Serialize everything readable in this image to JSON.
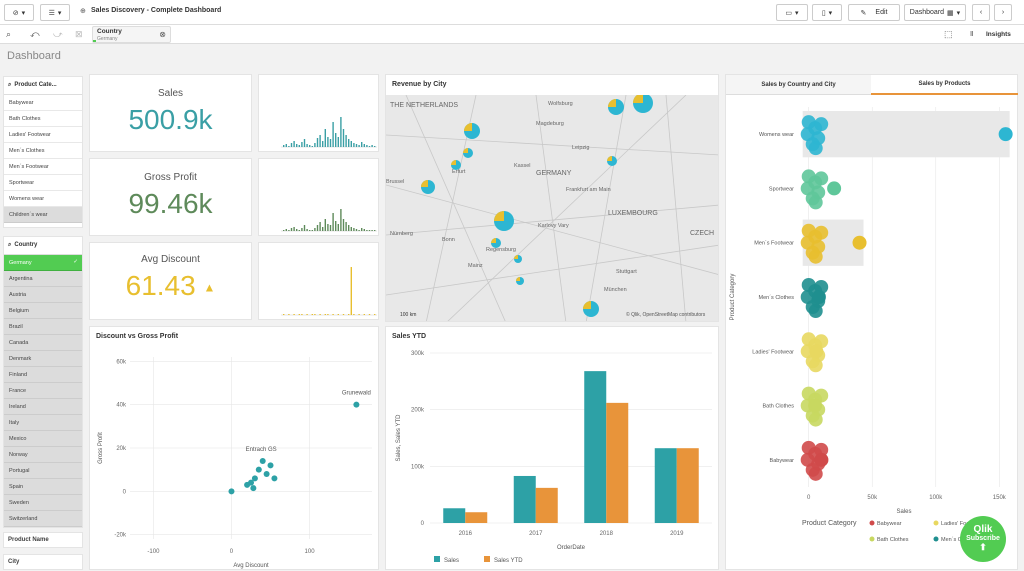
{
  "app": {
    "title": "Sales Discovery - Complete Dashboard",
    "sheet_title": "Dashboard"
  },
  "toolbar": {
    "edit": "Edit",
    "sheet": "Dashboard",
    "insights": "Insights"
  },
  "selection": {
    "field": "Country",
    "value": "Germany"
  },
  "product_filter": {
    "title": "Product Cate...",
    "items": [
      "Babywear",
      "Bath Clothes",
      "Ladies' Footwear",
      "Men´s Clothes",
      "Men´s Footwear",
      "Sportwear",
      "Womens wear",
      "Children´s wear"
    ]
  },
  "country_filter": {
    "title": "Country",
    "selected": "Germany",
    "items": [
      "Argentina",
      "Austria",
      "Belgium",
      "Brazil",
      "Canada",
      "Denmark",
      "Finland",
      "France",
      "Ireland",
      "Italy",
      "Mexico",
      "Norway",
      "Portugal",
      "Spain",
      "Sweden",
      "Switzerland"
    ]
  },
  "product_name_label": "Product Name",
  "city_label": "City",
  "kpis": [
    {
      "label": "Sales",
      "value": "500.9k",
      "color": "#3a9fa5"
    },
    {
      "label": "Gross Profit",
      "value": "99.46k",
      "color": "#5e8a5a"
    },
    {
      "label": "Avg Discount",
      "value": "61.43",
      "color": "#e8bf2f"
    }
  ],
  "map": {
    "title": "Revenue by City",
    "labels": [
      "THE NETHERLANDS",
      "Wolfsburg",
      "Magdeburg",
      "Kassel",
      "Leipzig",
      "Erfurt",
      "GERMANY",
      "Frankfurt am Main",
      "Karlovy Vary",
      "LUXEMBOURG",
      "Nürnberg",
      "Regensburg",
      "Stuttgart",
      "München",
      "CZECH",
      "Brussel",
      "Bonn",
      "Mainz"
    ],
    "scale": "100 km",
    "credit": "© Qlik, OpenStreetMap contributors"
  },
  "scatter": {
    "title": "Discount vs Gross Profit",
    "xlabel": "Avg Discount",
    "ylabel": "Gross Profit",
    "x_ticks": [
      "-100",
      "0",
      "100"
    ],
    "y_ticks": [
      "60k",
      "40k",
      "20k",
      "0",
      "-20k"
    ],
    "annotations": [
      "Grunewald",
      "Entrach GS"
    ]
  },
  "sales_ytd": {
    "title": "Sales YTD",
    "xlabel": "OrderDate",
    "ylabel": "Sales, Sales YTD",
    "y_ticks": [
      "300k",
      "200k",
      "100k",
      "0"
    ],
    "legend": [
      "Sales",
      "Sales YTD"
    ]
  },
  "products": {
    "tabs": [
      "Sales by Country and City",
      "Sales by Products"
    ],
    "ylabel": "Product Category",
    "xlabel": "Sales",
    "x_ticks": [
      "0",
      "50k",
      "100k",
      "150k"
    ],
    "legend_title": "Product Category",
    "legend": [
      "Babywear",
      "Ladies' Footwear",
      "Bath Clothes",
      "Men´s Clothes"
    ]
  },
  "subscribe": {
    "brand": "Qlik",
    "label": "Subscribe"
  },
  "colors": {
    "teal": "#2da1a6",
    "orange": "#e8943a",
    "green": "#52cc52"
  },
  "chart_data": [
    {
      "type": "bar",
      "title": "Sales YTD",
      "categories": [
        "2016",
        "2017",
        "2018",
        "2019"
      ],
      "series": [
        {
          "name": "Sales",
          "values": [
            26000,
            83000,
            268000,
            132000
          ]
        },
        {
          "name": "Sales YTD",
          "values": [
            19000,
            62000,
            212000,
            132000
          ]
        }
      ],
      "xlabel": "OrderDate",
      "ylabel": "Sales, Sales YTD",
      "ylim": [
        0,
        300000
      ]
    },
    {
      "type": "scatter",
      "title": "Discount vs Gross Profit",
      "xlabel": "Avg Discount",
      "ylabel": "Gross Profit",
      "xlim": [
        -130,
        180
      ],
      "ylim": [
        -22000,
        62000
      ],
      "points": [
        [
          0,
          0
        ],
        [
          25,
          4000
        ],
        [
          30,
          6000
        ],
        [
          35,
          10000
        ],
        [
          40,
          14000
        ],
        [
          45,
          8000
        ],
        [
          50,
          12000
        ],
        [
          55,
          6000
        ],
        [
          20,
          3000
        ],
        [
          28,
          1500
        ],
        [
          160,
          40000
        ]
      ]
    },
    {
      "type": "scatter",
      "title": "Sales by Products",
      "xlabel": "Sales",
      "ylabel": "Product Category",
      "xlim": [
        -10000,
        160000
      ],
      "categories": [
        "Womens wear",
        "Sportwear",
        "Men´s Footwear",
        "Men´s Clothes",
        "Ladies' Footwear",
        "Bath Clothes",
        "Babywear"
      ],
      "category_colors": [
        "#2db6d2",
        "#5fc79a",
        "#e8bf2f",
        "#1f8f8f",
        "#e8d860",
        "#c8d860",
        "#d04a4a"
      ],
      "max_values": [
        155000,
        20000,
        40000,
        8000,
        6000,
        5000,
        10000
      ]
    }
  ]
}
